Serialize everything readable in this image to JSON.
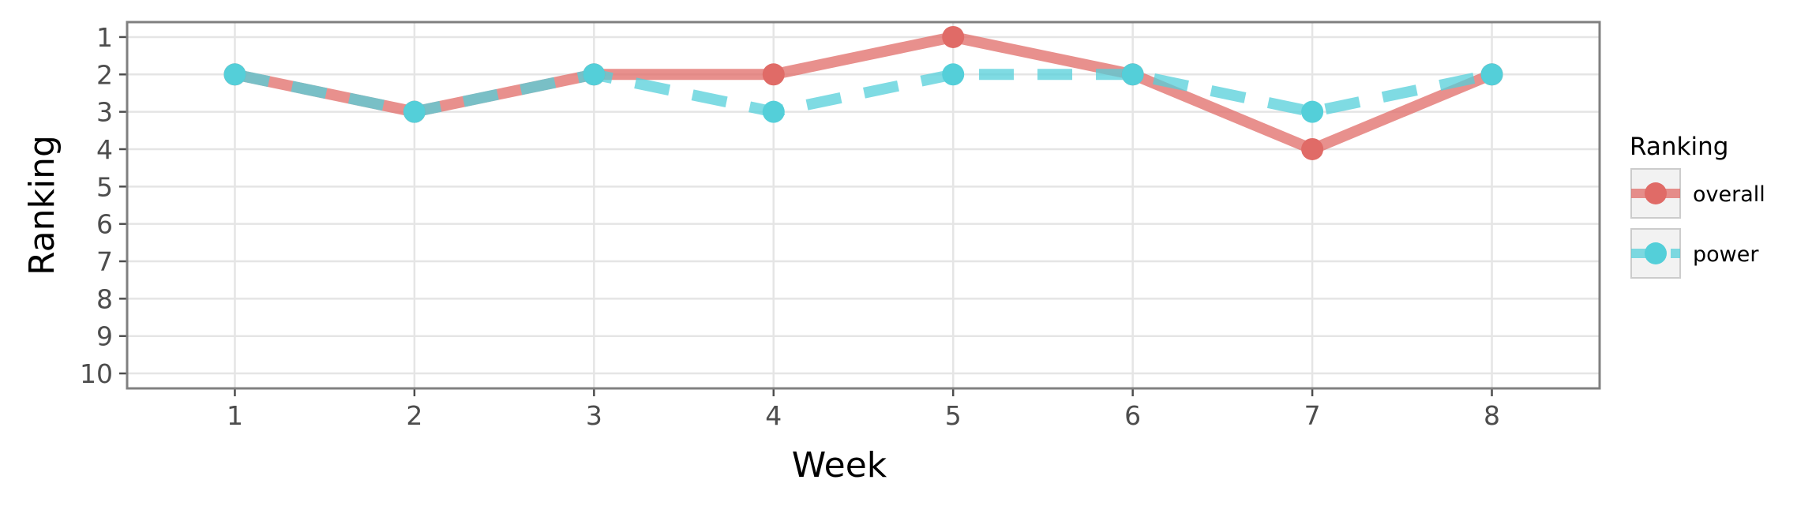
{
  "chart_data": {
    "type": "line",
    "xlabel": "Week",
    "ylabel": "Ranking",
    "x": [
      1,
      2,
      3,
      4,
      5,
      6,
      7,
      8
    ],
    "xlim": [
      0.4,
      8.6
    ],
    "ylim": [
      10.4,
      0.6
    ],
    "y_reversed": true,
    "xticks": [
      "1",
      "2",
      "3",
      "4",
      "5",
      "6",
      "7",
      "8"
    ],
    "yticks": [
      "1",
      "2",
      "3",
      "4",
      "5",
      "6",
      "7",
      "8",
      "9",
      "10"
    ],
    "grid": true,
    "legend": {
      "title": "Ranking",
      "position": "right"
    },
    "series": [
      {
        "name": "overall",
        "values": [
          2,
          3,
          2,
          2,
          1,
          2,
          4,
          2
        ],
        "color": "#e06b67",
        "line_style": "solid"
      },
      {
        "name": "power",
        "values": [
          2,
          3,
          2,
          3,
          2,
          2,
          3,
          2
        ],
        "color": "#54cfd9",
        "line_style": "dashed"
      }
    ]
  }
}
